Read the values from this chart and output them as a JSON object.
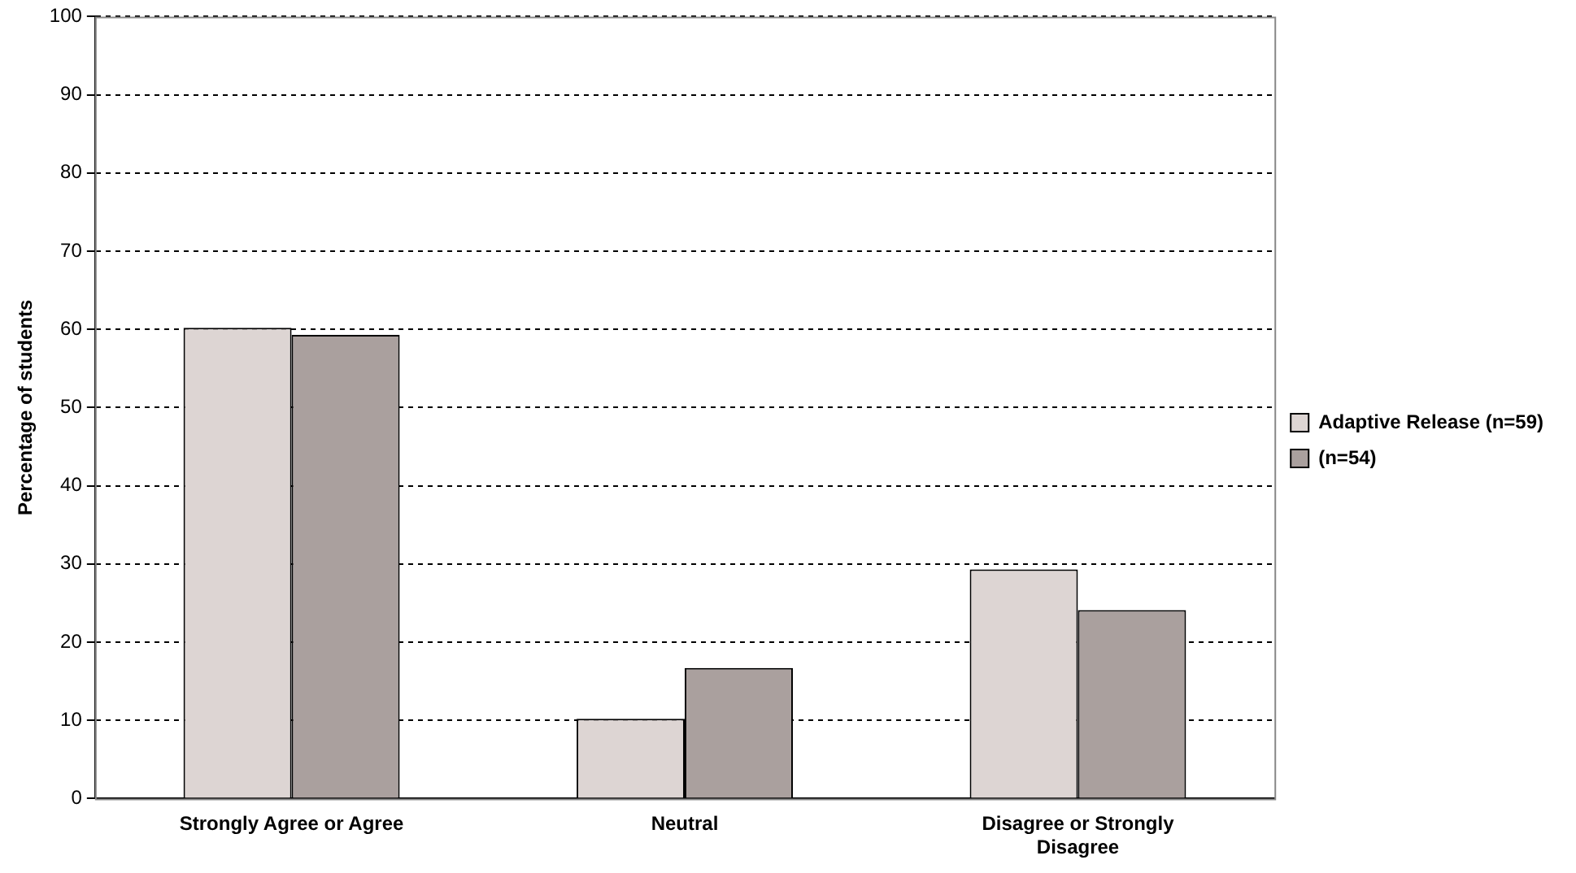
{
  "chart_data": {
    "type": "bar",
    "ylabel": "Percentage of students",
    "categories": [
      "Strongly Agree or Agree",
      "Neutral",
      "Disagree or Strongly Disagree"
    ],
    "series": [
      {
        "name": "Adaptive Release (n=59)",
        "color": "#ddd5d3",
        "values": [
          60.2,
          10.2,
          29.3
        ]
      },
      {
        "name": "(n=54)",
        "color": "#aaa09e",
        "values": [
          59.3,
          16.7,
          24.1
        ]
      }
    ],
    "ylim": [
      0,
      100
    ],
    "yticks": [
      0,
      10,
      20,
      30,
      40,
      50,
      60,
      70,
      80,
      90,
      100
    ],
    "grid": "y",
    "legend": "right"
  }
}
